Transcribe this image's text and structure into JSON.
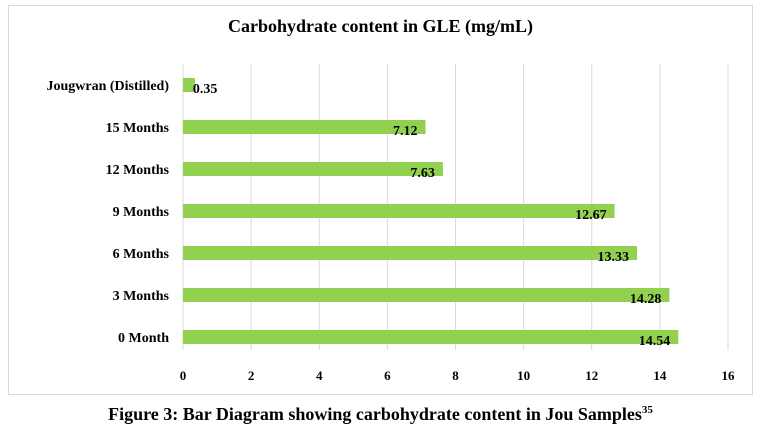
{
  "chart_data": {
    "type": "bar",
    "orientation": "horizontal",
    "title": "Carbohydrate content in GLE (mg/mL)",
    "categories": [
      "0 Month",
      "3 Months",
      "6 Months",
      "9 Months",
      "12 Months",
      "15 Months",
      "Jougwran (Distilled)"
    ],
    "values": [
      14.54,
      14.28,
      13.33,
      12.67,
      7.63,
      7.12,
      0.35
    ],
    "value_labels": [
      "14.54",
      "14.28",
      "13.33",
      "12.67",
      "7.63",
      "7.12",
      "0.35"
    ],
    "xlim": [
      0,
      16
    ],
    "xticks": [
      "0",
      "2",
      "4",
      "6",
      "8",
      "10",
      "12",
      "14",
      "16"
    ],
    "grid": "vertical",
    "legend": "none",
    "bar_color": "#92d050",
    "grid_color": "#d9d9d9"
  },
  "caption": {
    "text": "Figure 3: Bar Diagram showing carbohydrate content in Jou Samples",
    "superscript": "35"
  }
}
